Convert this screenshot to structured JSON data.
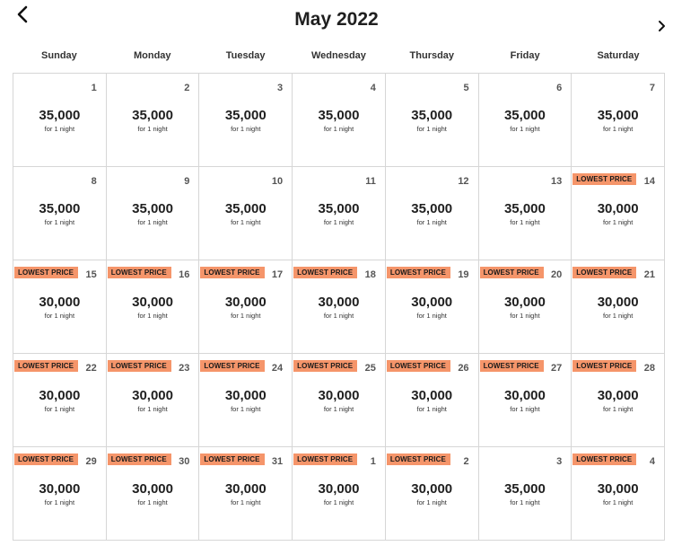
{
  "header": {
    "title": "May 2022",
    "prev_icon": "chevron-left-icon",
    "next_icon": "chevron-right-icon"
  },
  "weekdays": [
    "Sunday",
    "Monday",
    "Tuesday",
    "Wednesday",
    "Thursday",
    "Friday",
    "Saturday"
  ],
  "colors": {
    "badge": "#f5956a",
    "border": "#d6d6d6"
  },
  "badge_label": "LOWEST PRICE",
  "days": [
    {
      "day": "1",
      "price": "35,000",
      "sub": "for 1 night",
      "lowest": false
    },
    {
      "day": "2",
      "price": "35,000",
      "sub": "for 1 night",
      "lowest": false
    },
    {
      "day": "3",
      "price": "35,000",
      "sub": "for 1 night",
      "lowest": false
    },
    {
      "day": "4",
      "price": "35,000",
      "sub": "for 1 night",
      "lowest": false
    },
    {
      "day": "5",
      "price": "35,000",
      "sub": "for 1 night",
      "lowest": false
    },
    {
      "day": "6",
      "price": "35,000",
      "sub": "for 1 night",
      "lowest": false
    },
    {
      "day": "7",
      "price": "35,000",
      "sub": "for 1 night",
      "lowest": false
    },
    {
      "day": "8",
      "price": "35,000",
      "sub": "for 1 night",
      "lowest": false
    },
    {
      "day": "9",
      "price": "35,000",
      "sub": "for 1 night",
      "lowest": false
    },
    {
      "day": "10",
      "price": "35,000",
      "sub": "for 1 night",
      "lowest": false
    },
    {
      "day": "11",
      "price": "35,000",
      "sub": "for 1 night",
      "lowest": false
    },
    {
      "day": "12",
      "price": "35,000",
      "sub": "for 1 night",
      "lowest": false
    },
    {
      "day": "13",
      "price": "35,000",
      "sub": "for 1 night",
      "lowest": false
    },
    {
      "day": "14",
      "price": "30,000",
      "sub": "for 1 night",
      "lowest": true
    },
    {
      "day": "15",
      "price": "30,000",
      "sub": "for 1 night",
      "lowest": true
    },
    {
      "day": "16",
      "price": "30,000",
      "sub": "for 1 night",
      "lowest": true
    },
    {
      "day": "17",
      "price": "30,000",
      "sub": "for 1 night",
      "lowest": true
    },
    {
      "day": "18",
      "price": "30,000",
      "sub": "for 1 night",
      "lowest": true
    },
    {
      "day": "19",
      "price": "30,000",
      "sub": "for 1 night",
      "lowest": true
    },
    {
      "day": "20",
      "price": "30,000",
      "sub": "for 1 night",
      "lowest": true
    },
    {
      "day": "21",
      "price": "30,000",
      "sub": "for 1 night",
      "lowest": true
    },
    {
      "day": "22",
      "price": "30,000",
      "sub": "for 1 night",
      "lowest": true
    },
    {
      "day": "23",
      "price": "30,000",
      "sub": "for 1 night",
      "lowest": true
    },
    {
      "day": "24",
      "price": "30,000",
      "sub": "for 1 night",
      "lowest": true
    },
    {
      "day": "25",
      "price": "30,000",
      "sub": "for 1 night",
      "lowest": true
    },
    {
      "day": "26",
      "price": "30,000",
      "sub": "for 1 night",
      "lowest": true
    },
    {
      "day": "27",
      "price": "30,000",
      "sub": "for 1 night",
      "lowest": true
    },
    {
      "day": "28",
      "price": "30,000",
      "sub": "for 1 night",
      "lowest": true
    },
    {
      "day": "29",
      "price": "30,000",
      "sub": "for 1 night",
      "lowest": true
    },
    {
      "day": "30",
      "price": "30,000",
      "sub": "for 1 night",
      "lowest": true
    },
    {
      "day": "31",
      "price": "30,000",
      "sub": "for 1 night",
      "lowest": true
    },
    {
      "day": "1",
      "price": "30,000",
      "sub": "for 1 night",
      "lowest": true
    },
    {
      "day": "2",
      "price": "30,000",
      "sub": "for 1 night",
      "lowest": true
    },
    {
      "day": "3",
      "price": "35,000",
      "sub": "for 1 night",
      "lowest": false
    },
    {
      "day": "4",
      "price": "30,000",
      "sub": "for 1 night",
      "lowest": true
    }
  ]
}
